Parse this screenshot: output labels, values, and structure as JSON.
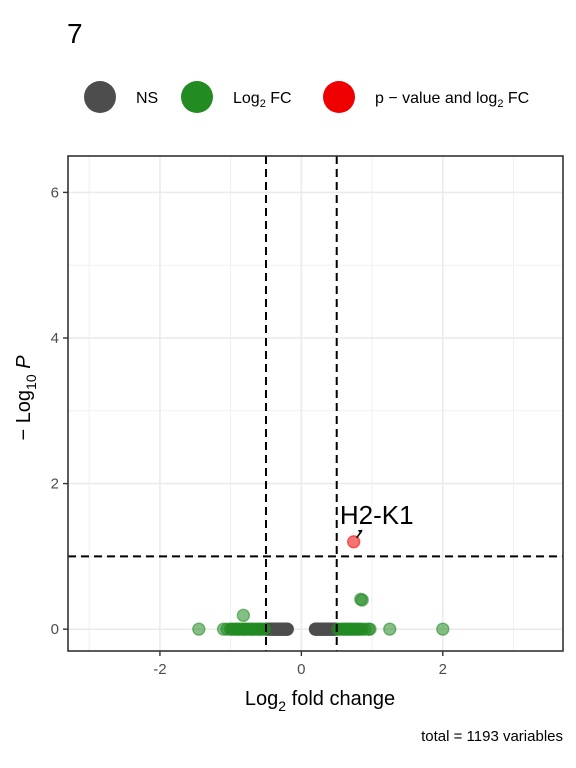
{
  "chart_data": {
    "type": "scatter",
    "title": "7",
    "xlabel": {
      "main": "Log",
      "sub": "2",
      "rest": " fold change"
    },
    "ylabel": {
      "pre": "− Log",
      "sub": "10",
      "rest": " P"
    },
    "caption": "total = 1193 variables",
    "xlim": [
      -3.3,
      3.7
    ],
    "ylim": [
      -0.3,
      6.5
    ],
    "xticks": [
      -2,
      0,
      2
    ],
    "yticks": [
      0,
      2,
      4,
      6
    ],
    "xtick_labels": [
      "-2",
      "0",
      "2"
    ],
    "ytick_labels": [
      "0",
      "2",
      "4",
      "6"
    ],
    "grid": true,
    "thresholds": {
      "log2fc": 0.5,
      "neg_log10_p": 1.0
    },
    "legend": {
      "position": "top",
      "entries": [
        {
          "key": "ns",
          "label": "NS",
          "color": "#4d4d4d"
        },
        {
          "key": "fc",
          "label": "Log",
          "sub": "2",
          "rest": " FC",
          "color": "#228b22"
        },
        {
          "key": "both",
          "label": "p − value and log",
          "sub": "2",
          "rest": " FC",
          "color": "#ee0000"
        }
      ]
    },
    "series": [
      {
        "name": "NS",
        "color": "#4d4d4d",
        "points": [
          [
            -0.48,
            0
          ],
          [
            -0.45,
            0
          ],
          [
            -0.42,
            0
          ],
          [
            -0.4,
            0
          ],
          [
            -0.38,
            0
          ],
          [
            -0.36,
            0
          ],
          [
            -0.34,
            0
          ],
          [
            -0.32,
            0
          ],
          [
            -0.3,
            0
          ],
          [
            -0.28,
            0
          ],
          [
            -0.26,
            0
          ],
          [
            -0.24,
            0
          ],
          [
            -0.22,
            0
          ],
          [
            -0.21,
            0
          ],
          [
            -0.2,
            0
          ],
          [
            0.2,
            0
          ],
          [
            0.22,
            0
          ],
          [
            0.24,
            0
          ],
          [
            0.26,
            0
          ],
          [
            0.28,
            0
          ],
          [
            0.3,
            0
          ],
          [
            0.32,
            0
          ],
          [
            0.34,
            0
          ],
          [
            0.36,
            0
          ],
          [
            0.38,
            0
          ],
          [
            0.4,
            0
          ],
          [
            0.42,
            0
          ],
          [
            0.44,
            0
          ],
          [
            0.46,
            0
          ],
          [
            0.48,
            0
          ]
        ]
      },
      {
        "name": "Log2 FC",
        "color": "#228b22",
        "points": [
          [
            -1.45,
            0
          ],
          [
            -1.1,
            0
          ],
          [
            -1.05,
            0
          ],
          [
            -1.0,
            0
          ],
          [
            -0.98,
            0
          ],
          [
            -0.95,
            0
          ],
          [
            -0.92,
            0
          ],
          [
            -0.9,
            0
          ],
          [
            -0.88,
            0
          ],
          [
            -0.85,
            0
          ],
          [
            -0.82,
            0
          ],
          [
            -0.8,
            0
          ],
          [
            -0.78,
            0
          ],
          [
            -0.75,
            0
          ],
          [
            -0.72,
            0
          ],
          [
            -0.7,
            0
          ],
          [
            -0.68,
            0
          ],
          [
            -0.65,
            0
          ],
          [
            -0.62,
            0
          ],
          [
            -0.6,
            0
          ],
          [
            -0.58,
            0
          ],
          [
            -0.55,
            0
          ],
          [
            -0.52,
            0
          ],
          [
            -0.82,
            0.19
          ],
          [
            0.52,
            0
          ],
          [
            0.55,
            0
          ],
          [
            0.58,
            0
          ],
          [
            0.6,
            0
          ],
          [
            0.63,
            0
          ],
          [
            0.65,
            0
          ],
          [
            0.68,
            0
          ],
          [
            0.7,
            0
          ],
          [
            0.72,
            0
          ],
          [
            0.75,
            0
          ],
          [
            0.78,
            0
          ],
          [
            0.8,
            0
          ],
          [
            0.83,
            0
          ],
          [
            0.86,
            0
          ],
          [
            0.9,
            0
          ],
          [
            0.95,
            0
          ],
          [
            0.97,
            0
          ],
          [
            1.25,
            0
          ],
          [
            2.0,
            0
          ],
          [
            0.84,
            0.41
          ],
          [
            0.86,
            0.4
          ]
        ]
      },
      {
        "name": "p - value and log2 FC",
        "color": "#ee0000",
        "points": [
          [
            0.74,
            1.2
          ]
        ]
      }
    ],
    "annotations": [
      {
        "text": "H2-K1",
        "x": 0.74,
        "y": 1.2
      }
    ]
  }
}
